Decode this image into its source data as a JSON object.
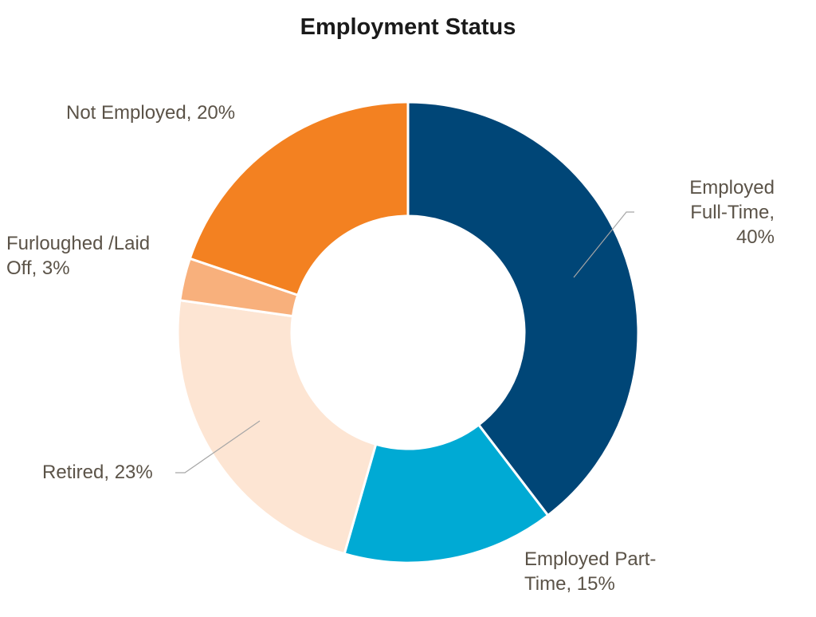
{
  "chart_data": {
    "type": "pie",
    "variant": "donut",
    "title": "Employment Status",
    "legend": "none",
    "slices": [
      {
        "label": "Employed Full-Time",
        "value": 40,
        "display_lines": [
          "Employed",
          "Full-Time,",
          "40%"
        ],
        "color": "#004677"
      },
      {
        "label": "Employed Part-Time",
        "value": 15,
        "display_lines": [
          "Employed Part-",
          "Time, 15%"
        ],
        "color": "#00aad4"
      },
      {
        "label": "Retired",
        "value": 23,
        "display_lines": [
          "Retired, 23%"
        ],
        "color": "#fde5d3"
      },
      {
        "label": "Furloughed /Laid Off",
        "value": 3,
        "display_lines": [
          "Furloughed /Laid",
          "Off, 3%"
        ],
        "color": "#f8b07c"
      },
      {
        "label": "Not Employed",
        "value": 20,
        "display_lines": [
          "Not Employed, 20%"
        ],
        "color": "#f38121"
      }
    ]
  }
}
